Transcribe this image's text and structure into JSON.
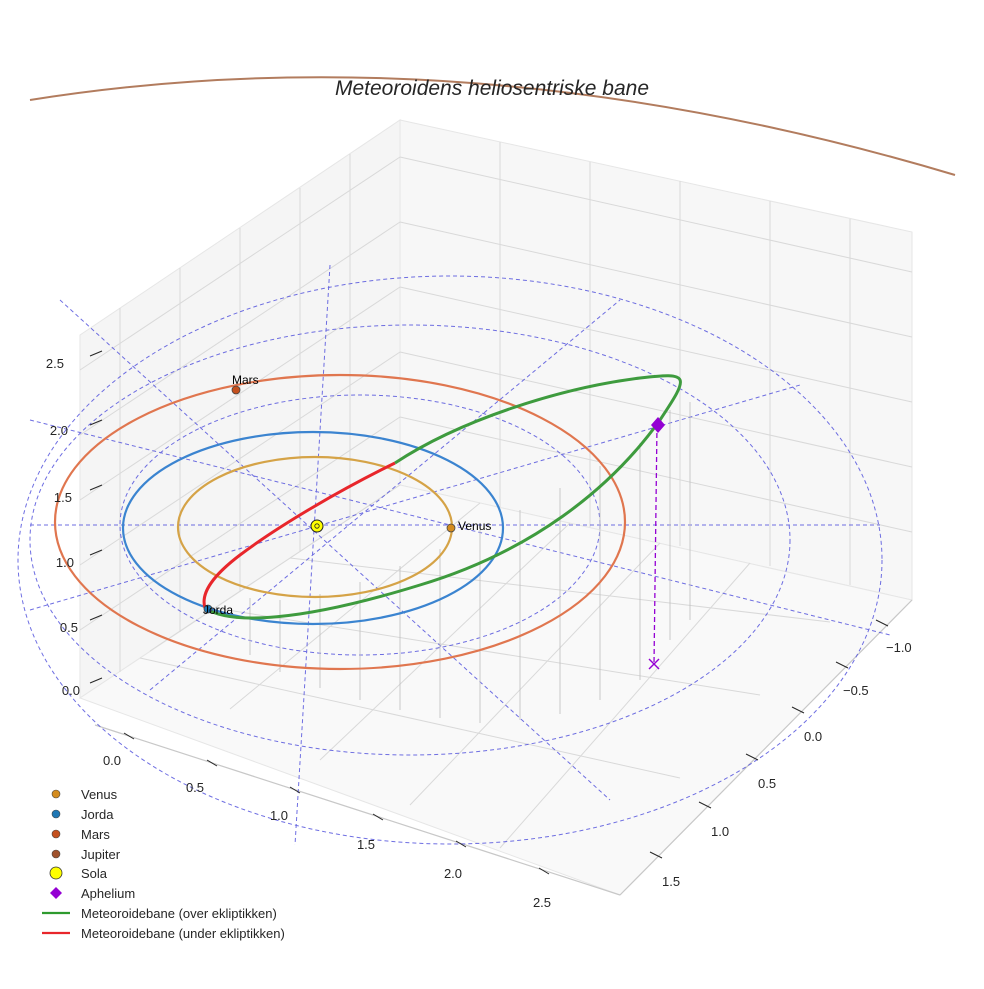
{
  "chart_data": {
    "type": "3d-orbit",
    "title": "Meteoroidens heliosentriske bane",
    "axes": {
      "x": {
        "ticks": [
          "0.0",
          "0.5",
          "1.0",
          "1.5",
          "2.0",
          "2.5"
        ]
      },
      "y": {
        "ticks": [
          "−1.0",
          "−0.5",
          "0.0",
          "0.5",
          "1.0",
          "1.5"
        ]
      },
      "z": {
        "ticks": [
          "0.0",
          "0.5",
          "1.0",
          "1.5",
          "2.0",
          "2.5"
        ]
      }
    },
    "grid": true,
    "legend_position": "bottom-left",
    "planets": [
      {
        "name": "Venus",
        "label": "Venus",
        "color": "#d39a2b"
      },
      {
        "name": "Jorda",
        "label": "Jorda",
        "color": "#2b7bd6"
      },
      {
        "name": "Mars",
        "label": "Mars",
        "color": "#e0683b"
      },
      {
        "name": "Jupiter",
        "label": "",
        "color": "#b07a5a"
      }
    ],
    "sun": {
      "name": "Sola",
      "color": "#ffff00"
    },
    "aphelion": {
      "name": "Aphelium",
      "color": "#9400d3"
    },
    "orbit_segments": [
      {
        "name": "Meteoroidebane (over ekliptikken)",
        "color": "#2e9a2e"
      },
      {
        "name": "Meteoroidebane (under ekliptikken)",
        "color": "#e8262b"
      }
    ],
    "legend": [
      {
        "label": "Venus",
        "marker": "circle",
        "color": "#d48c1f"
      },
      {
        "label": "Jorda",
        "marker": "circle",
        "color": "#1f77b4"
      },
      {
        "label": "Mars",
        "marker": "circle",
        "color": "#c4501e"
      },
      {
        "label": "Jupiter",
        "marker": "circle",
        "color": "#a0522d"
      },
      {
        "label": "Sola",
        "marker": "sun",
        "color": "#ffff00"
      },
      {
        "label": "Aphelium",
        "marker": "diamond",
        "color": "#9400d3"
      },
      {
        "label": "Meteoroidebane (over ekliptikken)",
        "marker": "line",
        "color": "#2e9a2e"
      },
      {
        "label": "Meteoroidebane (under ekliptikken)",
        "marker": "line",
        "color": "#e8262b"
      }
    ]
  }
}
